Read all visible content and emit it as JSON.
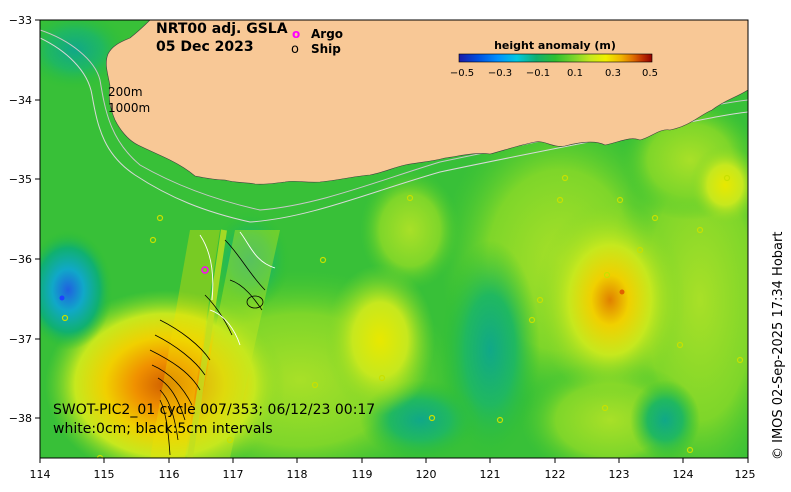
{
  "title": {
    "line1": "NRT00 adj. GSLA",
    "line2": "05 Dec 2023"
  },
  "legend": {
    "argo_symbol": "o",
    "argo_label": "Argo",
    "ship_symbol": "o",
    "ship_label": "Ship"
  },
  "isobaths": {
    "label_200": "200m",
    "label_1000": "1000m"
  },
  "colorbar": {
    "title": "height anomaly (m)",
    "ticks": [
      "−0.5",
      "−0.3",
      "−0.1",
      "0.1",
      "0.3",
      "0.5"
    ],
    "range": [
      -0.5,
      0.5
    ],
    "colors": [
      "#1a1aa8",
      "#0050e0",
      "#0090ff",
      "#00c8e0",
      "#10b070",
      "#30c030",
      "#7ed62a",
      "#c6e81e",
      "#f0f000",
      "#f0b400",
      "#e07000",
      "#c03000",
      "#900000"
    ]
  },
  "axes": {
    "x_ticks": [
      "114",
      "115",
      "116",
      "117",
      "118",
      "119",
      "120",
      "121",
      "122",
      "123",
      "124",
      "125"
    ],
    "y_ticks": [
      "−33",
      "−34",
      "−35",
      "−36",
      "−37",
      "−38"
    ],
    "x_range": [
      114,
      125
    ],
    "y_range": [
      -38.5,
      -33
    ]
  },
  "swot_note": {
    "line1": "SWOT-PIC2_01 cycle 007/353; 06/12/23 00:17",
    "line2": "white:0cm; black:5cm intervals"
  },
  "credit": "© IMOS 02-Sep-2025 17:34 Hobart",
  "colors": {
    "land": "#f8c896",
    "ocean_base": "#38c038",
    "argo": "#ff00ff"
  }
}
